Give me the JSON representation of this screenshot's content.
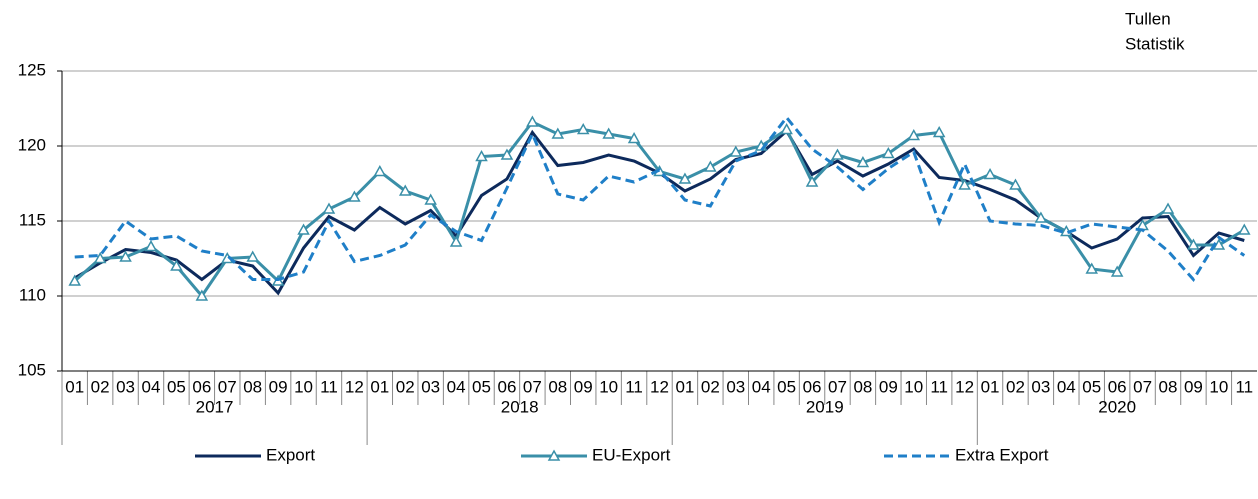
{
  "chart_data": {
    "type": "line",
    "annotation": [
      "Tullen",
      "Statistik"
    ],
    "categories": [
      "01",
      "02",
      "03",
      "04",
      "05",
      "06",
      "07",
      "08",
      "09",
      "10",
      "11",
      "12",
      "01",
      "02",
      "03",
      "04",
      "05",
      "06",
      "07",
      "08",
      "09",
      "10",
      "11",
      "12",
      "01",
      "02",
      "03",
      "04",
      "05",
      "06",
      "07",
      "08",
      "09",
      "10",
      "11",
      "12",
      "01",
      "02",
      "03",
      "04",
      "05",
      "06",
      "07",
      "08",
      "09",
      "10",
      "11"
    ],
    "year_labels": [
      "2017",
      "2018",
      "2019",
      "2020"
    ],
    "series": [
      {
        "name": "Export",
        "color": "#0d2a5c",
        "style": "solid",
        "marker": "none",
        "values": [
          111.2,
          112.2,
          113.1,
          112.9,
          112.4,
          111.1,
          112.4,
          112.0,
          110.2,
          113.2,
          115.3,
          114.4,
          115.9,
          114.8,
          115.7,
          114.0,
          116.7,
          117.8,
          120.9,
          118.7,
          118.9,
          119.4,
          119.0,
          118.2,
          117.0,
          117.8,
          119.1,
          119.5,
          121.0,
          118.1,
          119.0,
          118.0,
          118.8,
          119.8,
          117.9,
          117.7,
          117.1,
          116.4,
          115.2,
          114.3,
          113.2,
          113.8,
          115.2,
          115.3,
          112.7,
          114.2,
          113.7
        ]
      },
      {
        "name": "EU-Export",
        "color": "#3a8fa8",
        "style": "solid",
        "marker": "triangle",
        "values": [
          111.0,
          112.5,
          112.6,
          113.3,
          112.0,
          110.0,
          112.5,
          112.6,
          111.0,
          114.4,
          115.8,
          116.6,
          118.3,
          117.0,
          116.4,
          113.6,
          119.3,
          119.4,
          121.6,
          120.8,
          121.1,
          120.8,
          120.5,
          118.3,
          117.8,
          118.6,
          119.6,
          120.0,
          121.1,
          117.6,
          119.4,
          118.9,
          119.5,
          120.7,
          120.9,
          117.4,
          118.1,
          117.4,
          115.2,
          114.3,
          111.8,
          111.6,
          114.7,
          115.8,
          113.4,
          113.4,
          114.4
        ]
      },
      {
        "name": "Extra Export",
        "color": "#1f7fc8",
        "style": "dashed",
        "marker": "none",
        "values": [
          112.6,
          112.7,
          115.0,
          113.8,
          114.0,
          113.0,
          112.7,
          111.1,
          111.1,
          111.6,
          115.0,
          112.3,
          112.7,
          113.4,
          115.4,
          114.3,
          113.7,
          117.2,
          120.8,
          116.8,
          116.4,
          118.0,
          117.6,
          118.4,
          116.4,
          116.0,
          119.0,
          119.7,
          121.9,
          119.8,
          118.6,
          117.1,
          118.5,
          119.6,
          114.9,
          118.8,
          115.0,
          114.8,
          114.7,
          114.2,
          114.8,
          114.6,
          114.4,
          113.0,
          111.1,
          113.9,
          112.7
        ]
      }
    ],
    "ylim": [
      105,
      125
    ],
    "yticks": [
      105,
      110,
      115,
      120,
      125
    ],
    "grid": true,
    "legend": "bottom"
  }
}
